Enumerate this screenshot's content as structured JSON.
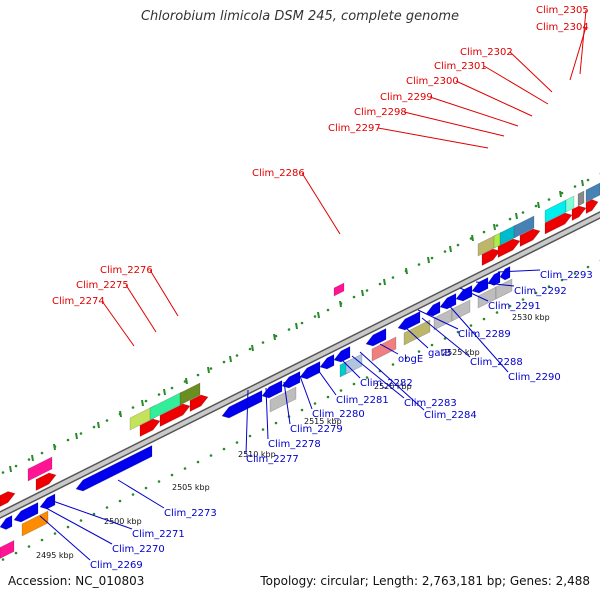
{
  "title": "Chlorobium limicola DSM 245, complete genome",
  "footer": {
    "accession": "Accession: NC_010803",
    "topology": "Topology: circular; Length: 2,763,181 bp; Genes: 2,488"
  },
  "colors": {
    "top_strand_label": "#e00000",
    "bottom_strand_label": "#0000cc",
    "backbone": "#9a9a9a",
    "ticks": "#2a8a2a"
  },
  "kbp_labels": [
    "2495 kbp",
    "2500 kbp",
    "2505 kbp",
    "2510 kbp",
    "2515 kbp",
    "2520 kbp",
    "2525 kbp",
    "2530 kbp"
  ],
  "top_labels": [
    "Clim_2274",
    "Clim_2275",
    "Clim_2276",
    "Clim_2286",
    "Clim_2297",
    "Clim_2298",
    "Clim_2299",
    "Clim_2300",
    "Clim_2301",
    "Clim_2302",
    "Clim_2304",
    "Clim_2305"
  ],
  "bottom_labels": [
    "Clim_2269",
    "Clim_2270",
    "Clim_2271",
    "Clim_2273",
    "Clim_2277",
    "Clim_2278",
    "Clim_2279",
    "Clim_2280",
    "Clim_2281",
    "Clim_2282",
    "Clim_2283",
    "Clim_2284",
    "obgE",
    "gatB",
    "Clim_2288",
    "Clim_2289",
    "Clim_2290",
    "Clim_2291",
    "Clim_2292",
    "Clim_2293"
  ]
}
